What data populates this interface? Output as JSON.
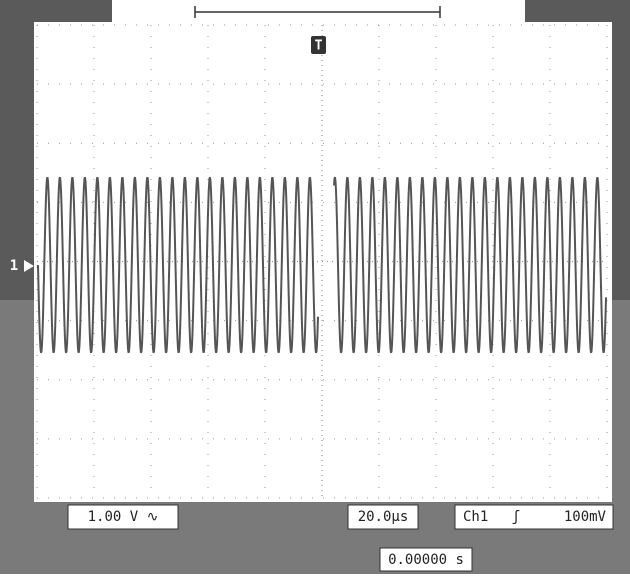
{
  "channel_marker": "1",
  "trigger_marker": "T",
  "readouts": {
    "volts_per_div": "1.00 V ∿",
    "time_per_div": "20.0µs",
    "trigger_source": "Ch1",
    "trigger_slope": "ʃ",
    "trigger_level": "100mV",
    "time_offset": "0.00000 s"
  }
}
